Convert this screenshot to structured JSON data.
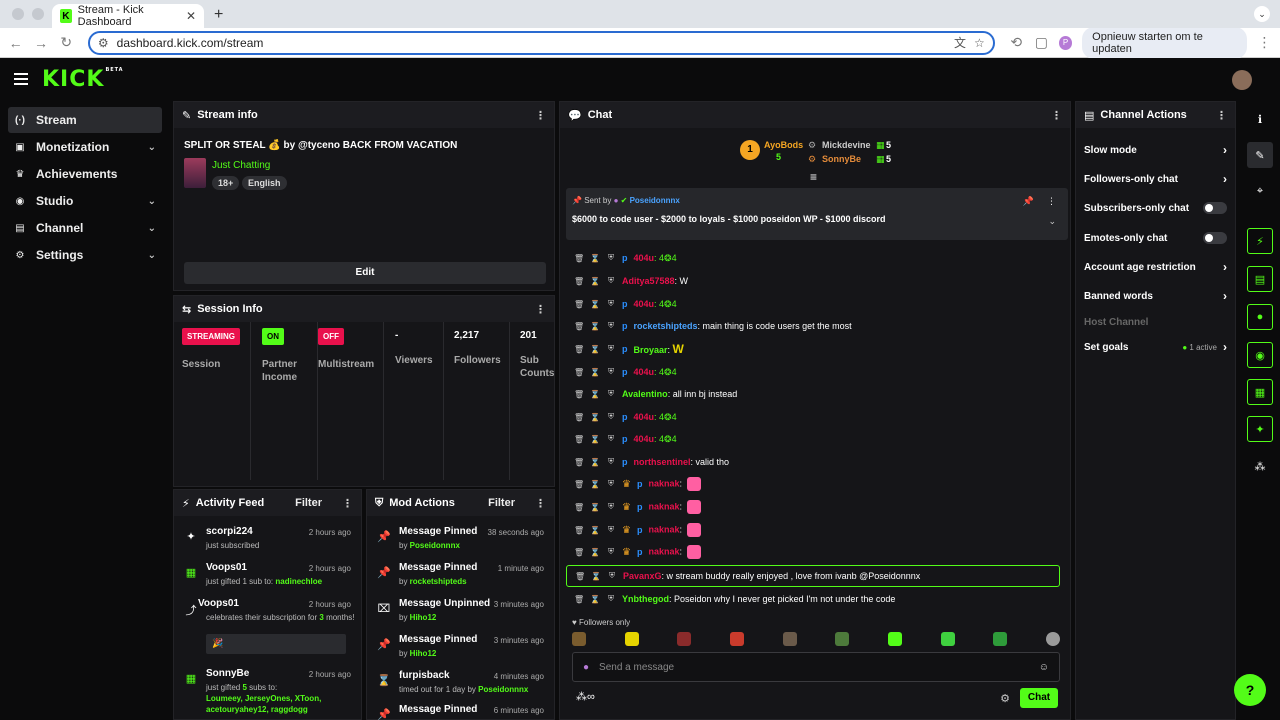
{
  "browser": {
    "tab_title": "Stream - Kick Dashboard",
    "url": "dashboard.kick.com/stream",
    "update_button": "Opnieuw starten om te updaten",
    "profile_initial": "P"
  },
  "app": {
    "logo": "KICK",
    "beta": "BETA"
  },
  "sidebar": {
    "items": [
      {
        "label": "Stream",
        "icon": "broadcast-icon"
      },
      {
        "label": "Monetization",
        "icon": "money-icon"
      },
      {
        "label": "Achievements",
        "icon": "trophy-icon"
      },
      {
        "label": "Studio",
        "icon": "studio-icon"
      },
      {
        "label": "Channel",
        "icon": "channel-icon"
      },
      {
        "label": "Settings",
        "icon": "gear-icon"
      }
    ]
  },
  "stream_info": {
    "header": "Stream info",
    "title": "SPLIT OR STEAL 💰 by @tyceno BACK FROM VACATION",
    "category": "Just Chatting",
    "tags": [
      "18+",
      "English"
    ],
    "edit": "Edit"
  },
  "session_info": {
    "header": "Session Info",
    "session_badge": "STREAMING",
    "session_label": "Session",
    "partner_badge": "ON",
    "partner_label_1": "Partner",
    "partner_label_2": "Income",
    "multistream_badge": "OFF",
    "multistream_label": "Multistream",
    "viewers_value": "-",
    "viewers_label": "Viewers",
    "followers_value": "2,217",
    "followers_label": "Followers",
    "subs_value": "201",
    "subs_label_1": "Sub",
    "subs_label_2": "Counts"
  },
  "activity_feed": {
    "header": "Activity Feed",
    "filter": "Filter",
    "items": [
      {
        "name": "scorpi224",
        "time": "2 hours ago",
        "text": "just subscribed"
      },
      {
        "name": "Voops01",
        "time": "2 hours ago",
        "text": "just gifted 1 sub to: ",
        "target": "nadinechloe"
      },
      {
        "name": "Voops01",
        "time": "2 hours ago",
        "text": "celebrates their subscription for ",
        "months": "3",
        "text2": " months!",
        "box": "🎉"
      },
      {
        "name": "SonnyBe",
        "time": "2 hours ago",
        "text": "just gifted ",
        "count": "5",
        "text2": " subs to:",
        "targets": "Loumeey, JerseyOnes, XToon, acetouryahey12, raggdogg"
      }
    ]
  },
  "mod_actions": {
    "header": "Mod Actions",
    "filter": "Filter",
    "items": [
      {
        "action": "Message Pinned",
        "time": "38 seconds ago",
        "by": "by ",
        "user": "Poseidonnnx"
      },
      {
        "action": "Message Pinned",
        "time": "1 minute ago",
        "by": "by ",
        "user": "rocketshipteds"
      },
      {
        "action": "Message Unpinned",
        "time": "3 minutes ago",
        "by": "by ",
        "user": "Hiho12"
      },
      {
        "action": "Message Pinned",
        "time": "3 minutes ago",
        "by": "by ",
        "user": "Hiho12"
      },
      {
        "action": "furpisback",
        "time": "4 minutes ago",
        "by": "timed out for 1 day by ",
        "user": "Poseidonnnx"
      },
      {
        "action": "Message Pinned",
        "time": "6 minutes ago",
        "by": "",
        "user": ""
      }
    ]
  },
  "chat": {
    "header": "Chat",
    "leaderboard": [
      {
        "name": "AyoBods",
        "count": "5",
        "rank": "1"
      },
      {
        "name": "Mickdevine",
        "count": "5"
      },
      {
        "name": "SonnyBe",
        "count": "5"
      }
    ],
    "pinned": {
      "sent_by": "Sent by",
      "user": "Poseidonnnx",
      "text": "$6000 to code user - $2000 to loyals - $1000 poseidon WP - $1000 discord"
    },
    "messages": [
      {
        "user": "404u",
        "text": ": 4",
        "emote": "❂",
        "text2": "4",
        "color": "red",
        "p": true
      },
      {
        "user": "Aditya57588",
        "text": ": W",
        "color": "red",
        "p": false
      },
      {
        "user": "404u",
        "text": ": 4",
        "emote": "❂",
        "text2": "4",
        "color": "red",
        "p": true
      },
      {
        "user": "rocketshipteds",
        "text": ": main thing is code users get the most",
        "color": "blue",
        "p": true
      },
      {
        "user": "Broyaar",
        "text": ": ",
        "emote": "W",
        "color": "green",
        "p": true
      },
      {
        "user": "404u",
        "text": ": 4",
        "emote": "❂",
        "text2": "4",
        "color": "red",
        "p": true
      },
      {
        "user": "Avalentino",
        "text": ": all inn bj instead",
        "color": "green",
        "p": false
      },
      {
        "user": "404u",
        "text": ": 4",
        "emote": "❂",
        "text2": "4",
        "color": "red",
        "p": true
      },
      {
        "user": "404u",
        "text": ": 4",
        "emote": "❂",
        "text2": "4",
        "color": "red",
        "p": true
      },
      {
        "user": "northsentinel",
        "text": ": valid tho",
        "color": "red",
        "p": true
      },
      {
        "user": "naknak",
        "text": ": ",
        "color": "red",
        "p": true,
        "crown": true
      },
      {
        "user": "naknak",
        "text": ": ",
        "color": "red",
        "p": true,
        "crown": true
      },
      {
        "user": "naknak",
        "text": ": ",
        "color": "red",
        "p": true,
        "crown": true
      },
      {
        "user": "naknak",
        "text": ": ",
        "color": "red",
        "p": true,
        "crown": true
      },
      {
        "user": "PavanxG",
        "text": ": w stream buddy really enjoyed , love from ivanb @Poseidonnnx",
        "color": "red",
        "p": false
      },
      {
        "user": "Ynbthegod",
        "text": ": Poseidon why I never get picked I'm not under the code",
        "color": "green",
        "p": false
      }
    ],
    "followers_only": "Followers only",
    "input_placeholder": "Send a message",
    "send_button": "Chat"
  },
  "channel_actions": {
    "header": "Channel Actions",
    "items": [
      {
        "label": "Slow mode",
        "type": "chevron"
      },
      {
        "label": "Followers-only chat",
        "type": "chevron"
      },
      {
        "label": "Subscribers-only chat",
        "type": "toggle"
      },
      {
        "label": "Emotes-only chat",
        "type": "toggle"
      },
      {
        "label": "Account age restriction",
        "type": "chevron"
      },
      {
        "label": "Banned words",
        "type": "chevron"
      },
      {
        "label": "Host Channel",
        "type": "disabled"
      },
      {
        "label": "Set goals",
        "type": "chevron",
        "extra": "1 active"
      }
    ]
  },
  "colors": {
    "accent": "#53fc18",
    "red": "#e9114c",
    "panel": "#151518"
  }
}
